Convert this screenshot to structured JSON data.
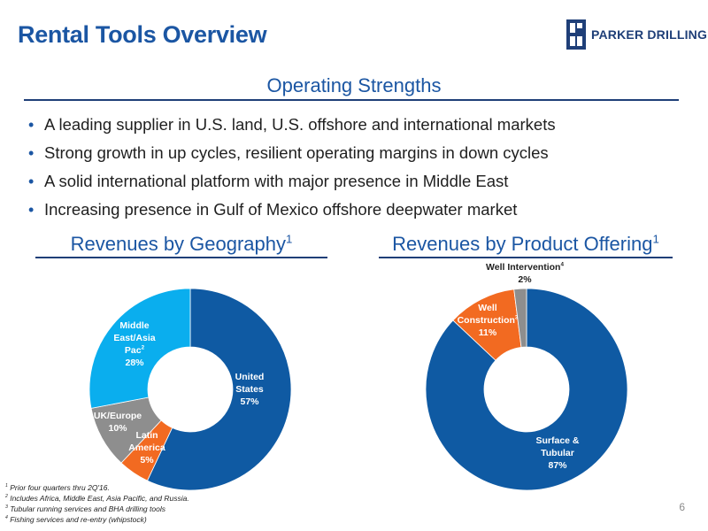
{
  "title": "Rental Tools Overview",
  "logo": {
    "text": "PARKER DRILLING",
    "icon": "parker-drilling-logo-icon"
  },
  "operating_strengths": {
    "heading": "Operating Strengths",
    "bullets": [
      "A leading supplier in U.S. land, U.S. offshore and international markets",
      "Strong growth in up cycles, resilient operating margins in down cycles",
      "A solid international platform with major presence in Middle East",
      "Increasing presence in Gulf of Mexico offshore deepwater market"
    ]
  },
  "geography": {
    "heading": "Revenues by Geography",
    "heading_sup": "1"
  },
  "product": {
    "heading": "Revenues by Product Offering",
    "heading_sup": "1"
  },
  "chart_data": [
    {
      "type": "pie",
      "title": "Revenues by Geography",
      "slices": [
        {
          "line1": "United",
          "line2": "States",
          "sup": "",
          "value_text": "57%",
          "value": 57,
          "color": "#0f5aa3"
        },
        {
          "line1": "Latin",
          "line2": "America",
          "sup": "",
          "value_text": "5%",
          "value": 5,
          "color": "#f26a21"
        },
        {
          "line1": "UK/Europe",
          "line2": "",
          "sup": "",
          "value_text": "10%",
          "value": 10,
          "color": "#8e8e8e"
        },
        {
          "line1": "Middle",
          "line2": "East/Asia",
          "line3": "Pac",
          "sup": "2",
          "value_text": "28%",
          "value": 28,
          "color": "#0aaeee"
        }
      ]
    },
    {
      "type": "pie",
      "title": "Revenues by Product Offering",
      "slices": [
        {
          "line1": "Surface &",
          "line2": "Tubular",
          "sup": "",
          "value_text": "87%",
          "value": 87,
          "color": "#0f5aa3"
        },
        {
          "line1": "Well",
          "line2": "Construction",
          "sup": "3",
          "value_text": "11%",
          "value": 11,
          "color": "#f26a21"
        },
        {
          "line1": "Well Intervention",
          "line2": "",
          "sup": "4",
          "value_text": "2%",
          "value": 2,
          "color": "#8e8e8e"
        }
      ]
    }
  ],
  "footnotes": [
    {
      "num": "1",
      "text": "Prior four quarters thru 2Q'16."
    },
    {
      "num": "2",
      "text": "Includes Africa, Middle East, Asia Pacific, and Russia."
    },
    {
      "num": "3",
      "text": "Tubular running services and BHA drilling tools"
    },
    {
      "num": "4",
      "text": "Fishing services and re-entry (whipstock)"
    }
  ],
  "page_number": "6"
}
